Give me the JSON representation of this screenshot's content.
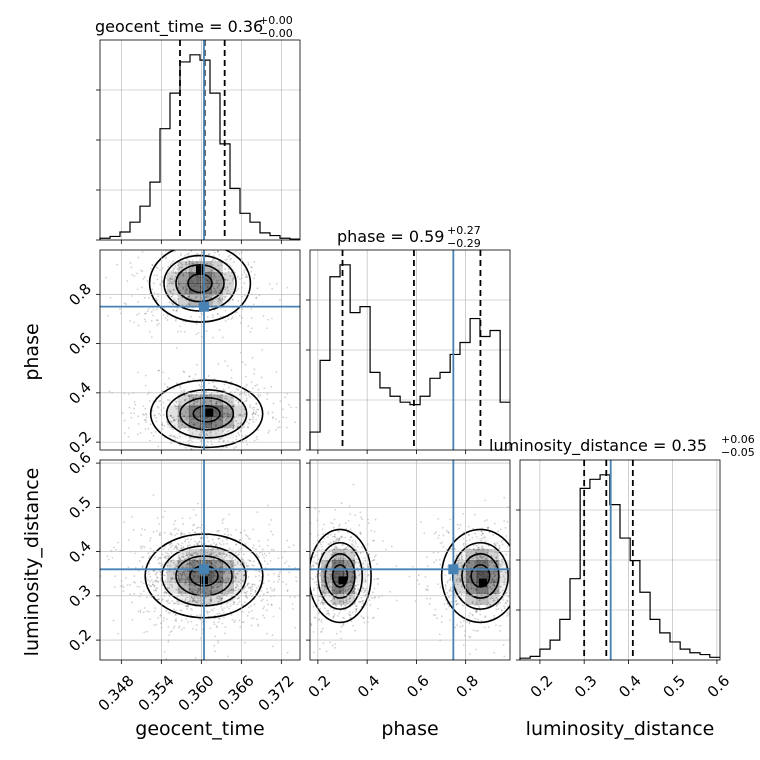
{
  "figure": {
    "type": "corner-plot",
    "params": [
      "geocent_time",
      "phase",
      "luminosity_distance"
    ],
    "truth_color": "#4682b4"
  },
  "titles": {
    "geocent_time": {
      "name": "geocent_time",
      "eq": " = 0.36",
      "plus": "+0.00",
      "minus": "−0.00"
    },
    "phase": {
      "name": "phase",
      "eq": " = 0.59",
      "plus": "+0.27",
      "minus": "−0.29"
    },
    "luminosity_distance": {
      "name": "luminosity_distance",
      "eq": " = 0.35",
      "plus": "+0.06",
      "minus": "−0.05"
    }
  },
  "axes": {
    "geocent_time": {
      "label": "geocent_time",
      "range": [
        0.3448,
        0.3748
      ],
      "ticks": [
        "0.348",
        "0.354",
        "0.360",
        "0.366",
        "0.372"
      ],
      "tick_values": [
        0.348,
        0.354,
        0.36,
        0.366,
        0.372
      ]
    },
    "phase": {
      "label": "phase",
      "range": [
        0.168,
        0.98
      ],
      "ticks": [
        "0.2",
        "0.4",
        "0.6",
        "0.8"
      ],
      "tick_values": [
        0.2,
        0.4,
        0.6,
        0.8
      ]
    },
    "luminosity_distance": {
      "label": "luminosity_distance",
      "range": [
        0.155,
        0.607
      ],
      "ticks": [
        "0.2",
        "0.3",
        "0.4",
        "0.5",
        "0.6"
      ],
      "tick_values": [
        0.2,
        0.3,
        0.4,
        0.5,
        0.6
      ]
    }
  },
  "chart_data": [
    {
      "type": "histogram",
      "param": "geocent_time",
      "bin_edges": [
        0.3448,
        0.3463,
        0.3478,
        0.3493,
        0.3508,
        0.3523,
        0.3538,
        0.3553,
        0.3568,
        0.3583,
        0.3598,
        0.3613,
        0.3628,
        0.3643,
        0.3658,
        0.3673,
        0.3688,
        0.3703,
        0.3718,
        0.3733,
        0.3748
      ],
      "counts": [
        2,
        4,
        9,
        20,
        38,
        65,
        125,
        165,
        200,
        208,
        202,
        165,
        108,
        58,
        30,
        20,
        8,
        5,
        2,
        1
      ],
      "quantiles": [
        0.3568,
        0.3605,
        0.3635
      ],
      "truth": 0.3604
    },
    {
      "type": "histogram",
      "param": "phase",
      "bin_edges": [
        0.168,
        0.209,
        0.249,
        0.29,
        0.331,
        0.371,
        0.412,
        0.452,
        0.493,
        0.534,
        0.574,
        0.615,
        0.655,
        0.696,
        0.737,
        0.777,
        0.818,
        0.858,
        0.899,
        0.94,
        0.98
      ],
      "counts": [
        15,
        75,
        145,
        155,
        115,
        120,
        65,
        52,
        45,
        40,
        38,
        45,
        60,
        65,
        80,
        90,
        110,
        95,
        100,
        40
      ],
      "quantiles": [
        0.3,
        0.59,
        0.86
      ],
      "truth": 0.75
    },
    {
      "type": "histogram",
      "param": "luminosity_distance",
      "bin_edges": [
        0.155,
        0.178,
        0.2,
        0.223,
        0.245,
        0.268,
        0.291,
        0.313,
        0.336,
        0.358,
        0.381,
        0.404,
        0.426,
        0.449,
        0.471,
        0.494,
        0.517,
        0.539,
        0.562,
        0.584,
        0.607
      ],
      "counts": [
        2,
        4,
        12,
        22,
        45,
        90,
        190,
        200,
        205,
        172,
        135,
        110,
        75,
        45,
        30,
        20,
        12,
        8,
        6,
        3
      ],
      "quantiles": [
        0.3,
        0.35,
        0.41
      ],
      "truth": 0.36
    },
    {
      "type": "heatmap",
      "x": "geocent_time",
      "y": "phase",
      "truth": [
        0.3604,
        0.75
      ],
      "density_centers": [
        {
          "x": 0.3598,
          "y": 0.845,
          "sx": 0.0036,
          "sy": 0.075,
          "w": 1.0
        },
        {
          "x": 0.3608,
          "y": 0.315,
          "sx": 0.004,
          "sy": 0.065,
          "w": 1.05
        }
      ],
      "peaks": [
        [
          0.3598,
          0.9
        ],
        [
          0.3612,
          0.32
        ]
      ]
    },
    {
      "type": "heatmap",
      "x": "geocent_time",
      "y": "luminosity_distance",
      "truth": [
        0.3604,
        0.36
      ],
      "density_centers": [
        {
          "x": 0.3604,
          "y": 0.345,
          "sx": 0.0042,
          "sy": 0.045,
          "w": 1.0
        }
      ],
      "peaks": [
        [
          0.3604,
          0.335
        ]
      ]
    },
    {
      "type": "heatmap",
      "x": "phase",
      "y": "luminosity_distance",
      "truth": [
        0.75,
        0.36
      ],
      "density_centers": [
        {
          "x": 0.29,
          "y": 0.345,
          "sx": 0.06,
          "sy": 0.05,
          "w": 1.0
        },
        {
          "x": 0.86,
          "y": 0.345,
          "sx": 0.075,
          "sy": 0.05,
          "w": 1.05
        }
      ],
      "peaks": [
        [
          0.3,
          0.335
        ],
        [
          0.87,
          0.33
        ]
      ]
    }
  ]
}
